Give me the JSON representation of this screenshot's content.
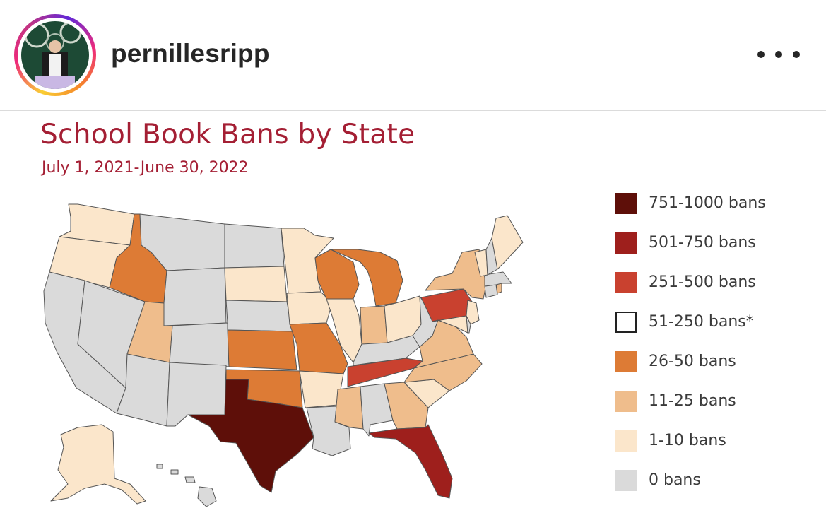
{
  "post": {
    "username": "pernillesripp",
    "more_icon": "more-horizontal-icon"
  },
  "map": {
    "title": "School Book Bans by State",
    "subtitle": "July 1, 2021-June 30, 2022",
    "colors": {
      "751-1000": "#5e0f09",
      "501-750": "#9e1f1c",
      "251-500": "#c9412f",
      "51-250": "#ffffff",
      "26-50": "#dd7b35",
      "11-25": "#efbd8c",
      "1-10": "#fbe6cb",
      "0": "#dadada"
    },
    "legend": [
      {
        "label": "751-1000 bans",
        "color": "#5e0f09"
      },
      {
        "label": "501-750 bans",
        "color": "#9e1f1c"
      },
      {
        "label": "251-500 bans",
        "color": "#c9412f"
      },
      {
        "label": "51-250 bans*",
        "color": "#ffffff"
      },
      {
        "label": "26-50 bans",
        "color": "#dd7b35"
      },
      {
        "label": "11-25 bans",
        "color": "#efbd8c"
      },
      {
        "label": "1-10 bans",
        "color": "#fbe6cb"
      },
      {
        "label": "0 bans",
        "color": "#dadada"
      }
    ],
    "states": [
      {
        "name": "Washington",
        "category": "1-10"
      },
      {
        "name": "Oregon",
        "category": "1-10"
      },
      {
        "name": "California",
        "category": "0"
      },
      {
        "name": "Nevada",
        "category": "0"
      },
      {
        "name": "Idaho",
        "category": "26-50"
      },
      {
        "name": "Montana",
        "category": "0"
      },
      {
        "name": "Wyoming",
        "category": "0"
      },
      {
        "name": "Utah",
        "category": "11-25"
      },
      {
        "name": "Arizona",
        "category": "0"
      },
      {
        "name": "Colorado",
        "category": "0"
      },
      {
        "name": "New Mexico",
        "category": "0"
      },
      {
        "name": "North Dakota",
        "category": "0"
      },
      {
        "name": "South Dakota",
        "category": "1-10"
      },
      {
        "name": "Nebraska",
        "category": "0"
      },
      {
        "name": "Kansas",
        "category": "26-50"
      },
      {
        "name": "Oklahoma",
        "category": "26-50"
      },
      {
        "name": "Texas",
        "category": "751-1000"
      },
      {
        "name": "Minnesota",
        "category": "1-10"
      },
      {
        "name": "Iowa",
        "category": "1-10"
      },
      {
        "name": "Missouri",
        "category": "26-50"
      },
      {
        "name": "Arkansas",
        "category": "1-10"
      },
      {
        "name": "Louisiana",
        "category": "0"
      },
      {
        "name": "Wisconsin",
        "category": "26-50"
      },
      {
        "name": "Illinois",
        "category": "1-10"
      },
      {
        "name": "Michigan",
        "category": "26-50"
      },
      {
        "name": "Indiana",
        "category": "11-25"
      },
      {
        "name": "Ohio",
        "category": "1-10"
      },
      {
        "name": "Kentucky",
        "category": "0"
      },
      {
        "name": "Tennessee",
        "category": "251-500"
      },
      {
        "name": "Mississippi",
        "category": "11-25"
      },
      {
        "name": "Alabama",
        "category": "0"
      },
      {
        "name": "Georgia",
        "category": "11-25"
      },
      {
        "name": "Florida",
        "category": "501-750"
      },
      {
        "name": "South Carolina",
        "category": "1-10"
      },
      {
        "name": "North Carolina",
        "category": "11-25"
      },
      {
        "name": "Virginia",
        "category": "11-25"
      },
      {
        "name": "West Virginia",
        "category": "0"
      },
      {
        "name": "Pennsylvania",
        "category": "251-500"
      },
      {
        "name": "New York",
        "category": "11-25"
      },
      {
        "name": "New Jersey",
        "category": "1-10"
      },
      {
        "name": "Maryland",
        "category": "1-10"
      },
      {
        "name": "Delaware",
        "category": "0"
      },
      {
        "name": "Connecticut",
        "category": "0"
      },
      {
        "name": "Rhode Island",
        "category": "11-25"
      },
      {
        "name": "Massachusetts",
        "category": "0"
      },
      {
        "name": "Vermont",
        "category": "1-10"
      },
      {
        "name": "New Hampshire",
        "category": "0"
      },
      {
        "name": "Maine",
        "category": "1-10"
      },
      {
        "name": "Alaska",
        "category": "1-10"
      },
      {
        "name": "Hawaii",
        "category": "0"
      }
    ]
  }
}
